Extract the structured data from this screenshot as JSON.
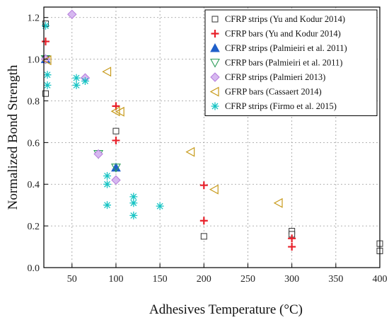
{
  "chart_data": {
    "type": "scatter",
    "title": "",
    "xlabel": "Adhesives Temperature (°C)",
    "ylabel": "Normalized Bond Strength",
    "xlim": [
      18,
      400
    ],
    "ylim": [
      0.0,
      1.25
    ],
    "xticks": [
      50,
      100,
      150,
      200,
      250,
      300,
      350,
      400
    ],
    "yticks": [
      0.0,
      0.2,
      0.4,
      0.6,
      0.8,
      1.0,
      1.2
    ],
    "xtick_labels": [
      "50",
      "100",
      "150",
      "200",
      "250",
      "300",
      "350",
      "400"
    ],
    "ytick_labels": [
      "0.0",
      "0.2",
      "0.4",
      "0.6",
      "0.8",
      "1.0",
      "1.2"
    ],
    "grid": true,
    "legend_position": "top-right",
    "series": [
      {
        "name": "CFRP strips (Yu and Kodur 2014)",
        "marker": "open-square",
        "color": "#333333",
        "x": [
          20,
          20,
          20,
          100,
          200,
          300,
          300,
          400,
          400
        ],
        "y": [
          1.17,
          1.0,
          0.835,
          0.655,
          0.15,
          0.175,
          0.16,
          0.115,
          0.08
        ]
      },
      {
        "name": "CFRP bars (Yu and Kodur 2014)",
        "marker": "plus",
        "color": "#e8202a",
        "x": [
          20,
          20,
          100,
          100,
          200,
          200,
          300,
          300
        ],
        "y": [
          1.085,
          1.0,
          0.775,
          0.61,
          0.395,
          0.225,
          0.14,
          0.1
        ]
      },
      {
        "name": "CFRP strips (Palmieiri et al. 2011)",
        "marker": "filled-triangle",
        "color": "#1f5fc9",
        "x": [
          20,
          100
        ],
        "y": [
          1.0,
          0.48
        ]
      },
      {
        "name": "CFRP bars (Palmieiri et al. 2011)",
        "marker": "open-triangle-down",
        "color": "#2e9e5b",
        "x": [
          20,
          100,
          80
        ],
        "y": [
          1.0,
          0.48,
          0.545
        ]
      },
      {
        "name": "CFRP strips (Palmieri 2013)",
        "marker": "diamond",
        "color": "#b57bdc",
        "x": [
          20,
          50,
          65,
          80,
          100
        ],
        "y": [
          1.0,
          1.215,
          0.91,
          0.545,
          0.42
        ]
      },
      {
        "name": "GFRP bars (Cassaert 2014)",
        "marker": "open-triangle-left",
        "color": "#c79a1a",
        "x": [
          22,
          90,
          100,
          105,
          185,
          212,
          285
        ],
        "y": [
          0.995,
          0.94,
          0.75,
          0.748,
          0.555,
          0.375,
          0.31
        ]
      },
      {
        "name": "CFRP strips (Firmo et al. 2015)",
        "marker": "asterisk",
        "color": "#17c4c4",
        "x": [
          20,
          22,
          22,
          55,
          55,
          65,
          90,
          90,
          90,
          120,
          120,
          120,
          150
        ],
        "y": [
          1.16,
          0.925,
          0.875,
          0.91,
          0.875,
          0.895,
          0.44,
          0.4,
          0.3,
          0.34,
          0.31,
          0.25,
          0.295
        ]
      }
    ]
  }
}
